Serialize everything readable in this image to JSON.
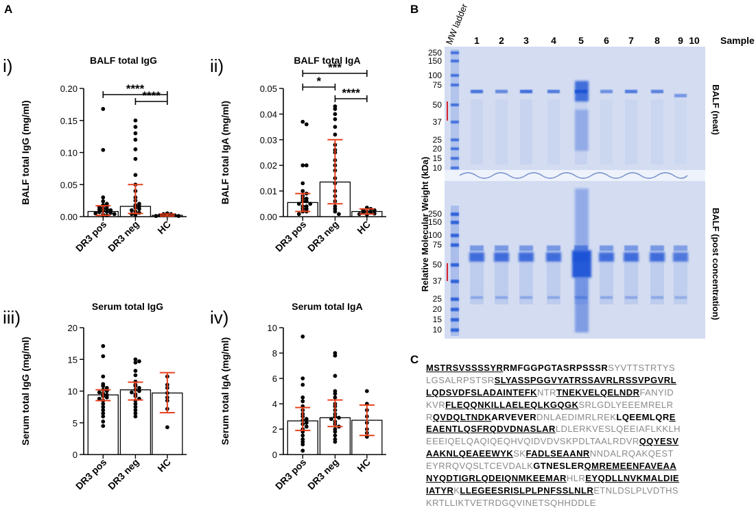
{
  "panel_labels": {
    "A": "A",
    "B": "B",
    "C": "C"
  },
  "chart_data": [
    {
      "type": "bar",
      "id": "i",
      "numeral": "i)",
      "title": "BALF total IgG",
      "ylabel": "BALF total IgG (mg/ml)",
      "categories": [
        "DR3 pos",
        "DR3 neg",
        "HC"
      ],
      "ylim": [
        0,
        0.2
      ],
      "yticks": [
        0.0,
        0.05,
        0.1,
        0.15,
        0.2
      ],
      "ytick_labels": [
        "0.00",
        "0.05",
        "0.10",
        "0.15",
        "0.20"
      ],
      "bars": [
        0.008,
        0.016,
        0.002
      ],
      "error_low": [
        0.002,
        0.005,
        0.001
      ],
      "error_high": [
        0.017,
        0.05,
        0.004
      ],
      "points": [
        [
          0.168,
          0.104,
          0.03,
          0.024,
          0.02,
          0.018,
          0.016,
          0.015,
          0.013,
          0.012,
          0.011,
          0.01,
          0.009,
          0.008,
          0.007,
          0.006,
          0.005,
          0.004,
          0.003,
          0.002
        ],
        [
          0.15,
          0.14,
          0.13,
          0.12,
          0.105,
          0.09,
          0.065,
          0.05,
          0.04,
          0.03,
          0.025,
          0.02,
          0.018,
          0.016,
          0.014,
          0.012,
          0.01,
          0.008,
          0.006,
          0.004,
          0.003
        ],
        [
          0.005,
          0.004,
          0.004,
          0.003,
          0.003,
          0.002,
          0.002,
          0.002,
          0.001,
          0.001
        ]
      ],
      "significance": [
        {
          "from": 0,
          "to": 2,
          "label": "****",
          "y": 0.19
        },
        {
          "from": 1,
          "to": 2,
          "label": "****",
          "y": 0.18
        }
      ]
    },
    {
      "type": "bar",
      "id": "ii",
      "numeral": "ii)",
      "title": "BALF total IgA",
      "ylabel": "BALF total IgA (mg/ml)",
      "categories": [
        "DR3 pos",
        "DR3 neg",
        "HC"
      ],
      "ylim": [
        0,
        0.05
      ],
      "yticks": [
        0.0,
        0.01,
        0.02,
        0.03,
        0.04,
        0.05
      ],
      "ytick_labels": [
        "0.00",
        "0.01",
        "0.02",
        "0.03",
        "0.04",
        "0.05"
      ],
      "bars": [
        0.0055,
        0.0135,
        0.002
      ],
      "error_low": [
        0.002,
        0.005,
        0.001
      ],
      "error_high": [
        0.009,
        0.03,
        0.003
      ],
      "points": [
        [
          0.037,
          0.036,
          0.02,
          0.02,
          0.013,
          0.01,
          0.009,
          0.008,
          0.007,
          0.007,
          0.006,
          0.006,
          0.005,
          0.005,
          0.004,
          0.004,
          0.003,
          0.003,
          0.002,
          0.002,
          0.001
        ],
        [
          0.043,
          0.042,
          0.04,
          0.038,
          0.035,
          0.032,
          0.028,
          0.026,
          0.025,
          0.022,
          0.02,
          0.018,
          0.015,
          0.013,
          0.01,
          0.008,
          0.006,
          0.004,
          0.003,
          0.002,
          0.001
        ],
        [
          0.0035,
          0.003,
          0.0025,
          0.0025,
          0.002,
          0.0018,
          0.0015,
          0.0012,
          0.001,
          0.0008
        ]
      ],
      "significance": [
        {
          "from": 0,
          "to": 2,
          "label": "***",
          "y": 0.056
        },
        {
          "from": 0,
          "to": 1,
          "label": "*",
          "y": 0.0505
        },
        {
          "from": 1,
          "to": 2,
          "label": "****",
          "y": 0.046
        }
      ]
    },
    {
      "type": "bar",
      "id": "iii",
      "numeral": "iii)",
      "title": "Serum total IgG",
      "ylabel": "Serum total IgG (mg/ml)",
      "categories": [
        "DR3 pos",
        "DR3 neg",
        "HC"
      ],
      "ylim": [
        0,
        20
      ],
      "yticks": [
        0,
        5,
        10,
        15,
        20
      ],
      "ytick_labels": [
        "0",
        "5",
        "10",
        "15",
        "20"
      ],
      "bars": [
        9.4,
        10.2,
        9.7
      ],
      "error_low": [
        8.5,
        8.6,
        6.6
      ],
      "error_high": [
        10.2,
        11.4,
        12.9
      ],
      "points": [
        [
          17.1,
          15.5,
          12.3,
          11.1,
          10.8,
          10.5,
          10.2,
          10.0,
          9.8,
          9.6,
          9.4,
          9.2,
          9.0,
          8.8,
          8.5,
          8.0,
          7.5,
          7.0,
          6.5,
          6.0,
          5.2,
          4.5
        ],
        [
          15.0,
          14.7,
          14.5,
          13.2,
          12.5,
          11.5,
          11.0,
          10.8,
          10.5,
          10.2,
          10.0,
          9.8,
          9.5,
          9.2,
          8.8,
          8.5,
          8.0,
          7.5,
          7.0,
          6.5,
          6.0
        ],
        [
          12.3,
          11.0,
          10.5,
          9.7,
          9.0,
          8.5,
          7.2,
          4.3
        ]
      ],
      "significance": []
    },
    {
      "type": "bar",
      "id": "iv",
      "numeral": "iv)",
      "title": "Serum total IgA",
      "ylabel": "Serum total IgA (mg/ml)",
      "categories": [
        "DR3 pos",
        "DR3 neg",
        "HC"
      ],
      "ylim": [
        0,
        10
      ],
      "yticks": [
        0,
        2,
        4,
        6,
        8,
        10
      ],
      "ytick_labels": [
        "0",
        "2",
        "4",
        "6",
        "8",
        "10"
      ],
      "bars": [
        2.65,
        2.9,
        2.7
      ],
      "error_low": [
        1.9,
        2.2,
        1.5
      ],
      "error_high": [
        3.7,
        4.3,
        3.9
      ],
      "points": [
        [
          9.3,
          6.0,
          5.5,
          4.5,
          4.2,
          3.8,
          3.5,
          3.2,
          3.0,
          2.8,
          2.7,
          2.5,
          2.4,
          2.2,
          2.0,
          1.8,
          1.5,
          1.2,
          1.0,
          0.8,
          0.3
        ],
        [
          8.0,
          7.8,
          6.2,
          5.0,
          4.8,
          4.5,
          4.0,
          3.8,
          3.5,
          3.2,
          3.0,
          2.9,
          2.8,
          2.6,
          2.4,
          2.2,
          2.0,
          1.8,
          1.5,
          1.2,
          1.0
        ],
        [
          5.0,
          4.0,
          3.5,
          3.0,
          2.5,
          2.0,
          1.7,
          1.4
        ]
      ],
      "significance": []
    }
  ],
  "gel": {
    "header_ladder": "MW ladder",
    "lane_labels": [
      "1",
      "2",
      "3",
      "4",
      "5",
      "6",
      "7",
      "8",
      "9",
      "10"
    ],
    "sample_label": "Sample",
    "ylabel": "Relative Molecular Weight (kDa)",
    "top_markers": [
      "250",
      "150",
      "100",
      "75",
      "50",
      "37",
      "25",
      "20",
      "15",
      "10"
    ],
    "bottom_markers": [
      "250",
      "150",
      "100",
      "75",
      "50",
      "37",
      "25",
      "20",
      "15",
      "10"
    ],
    "top_panel_label": "BALF (neat)",
    "bottom_panel_label": "BALF (post concentration)"
  },
  "sequence": {
    "lines": [
      [
        {
          "t": "MSTRSVSSSSYR",
          "p": true
        },
        {
          "t": "RMFGGPGTASRPSSSR",
          "p": "bold"
        },
        {
          "t": "SYVTTSTRTYS",
          "p": false
        }
      ],
      [
        {
          "t": "LGSALRPSTSR",
          "p": false
        },
        {
          "t": "SLYASSPGGVYATRSSAVRLRSSVPGVRL",
          "p": true
        }
      ],
      [
        {
          "t": "LQDSVDFSLADAINTEFK",
          "p": true
        },
        {
          "t": "NTR",
          "p": false
        },
        {
          "t": "TNEKVELQELNDR",
          "p": true
        },
        {
          "t": "FANYID",
          "p": false
        }
      ],
      [
        {
          "t": "KVR",
          "p": false
        },
        {
          "t": "FLEQQNKILLAELEQLKGQGK",
          "p": true
        },
        {
          "t": "SRLGDLYEEEMRELR",
          "p": false
        }
      ],
      [
        {
          "t": "R",
          "p": false
        },
        {
          "t": "QVDQLTNDK",
          "p": true
        },
        {
          "t": "ARVEVER",
          "p": "bold"
        },
        {
          "t": "DNLAEDIMRLREK",
          "p": false
        },
        {
          "t": "LQEEMLQR",
          "p": "bold"
        },
        {
          "t": "E",
          "p": true
        }
      ],
      [
        {
          "t": "EAENTLQSFRQDVDNASLAR",
          "p": true
        },
        {
          "t": "LDLERKVESLQEEIAFLKKLH",
          "p": false
        }
      ],
      [
        {
          "t": "EEEIQELQAQIQEQHVQIDVDVSKPDLTAALRDVR",
          "p": false
        },
        {
          "t": "QQYESV",
          "p": true
        }
      ],
      [
        {
          "t": "AAKNLQEAEEWYK",
          "p": true
        },
        {
          "t": "SK",
          "p": false
        },
        {
          "t": "FADLSEAANR",
          "p": true
        },
        {
          "t": "NNDALRQAKQEST",
          "p": false
        }
      ],
      [
        {
          "t": "EYRRQVQSLTCEVDALK",
          "p": false
        },
        {
          "t": "GTNESLER",
          "p": "bold"
        },
        {
          "t": "QMREMEENFAVEAA",
          "p": true
        }
      ],
      [
        {
          "t": "NYQDTIGRLQDEIQNMKEEMAR",
          "p": true
        },
        {
          "t": "HLR",
          "p": false
        },
        {
          "t": "EYQDLLNVKMALDIE",
          "p": true
        }
      ],
      [
        {
          "t": "IATYR",
          "p": true
        },
        {
          "t": "K",
          "p": false
        },
        {
          "t": "LLEGEESRISLPLPNFSSLNLR",
          "p": true
        },
        {
          "t": "ETNLDSLPLVDTHS",
          "p": false
        }
      ],
      [
        {
          "t": "KRTLLIKTVETRDGQVINETSQHHDDLE",
          "p": false
        }
      ]
    ]
  },
  "colors": {
    "error_bar": "#e8401c",
    "gel_background": "#d3dcf1",
    "band": "#1a52d6",
    "marker_red": "#d6222a"
  }
}
